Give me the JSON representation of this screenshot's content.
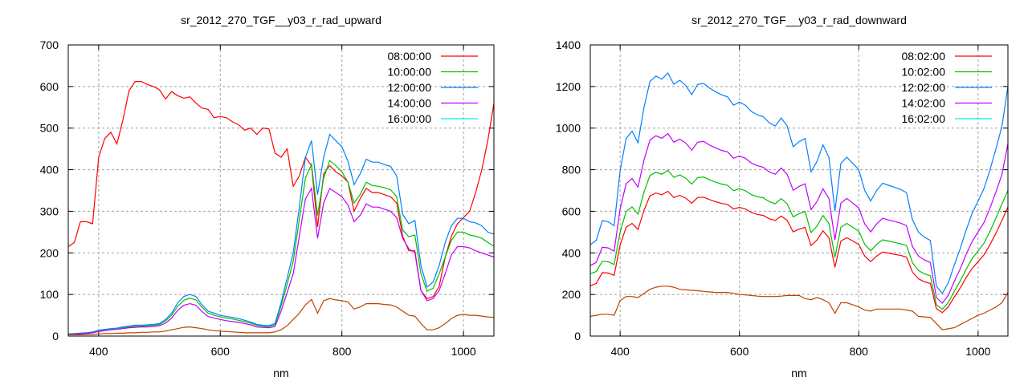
{
  "chart_data": [
    {
      "type": "line",
      "title": "sr_2012_270_TGF__y03_r_rad_upward",
      "xlabel": "nm",
      "ylabel": "",
      "xlim": [
        350,
        1050
      ],
      "ylim": [
        0,
        700
      ],
      "xticks": [
        400,
        600,
        800,
        1000
      ],
      "yticks": [
        0,
        100,
        200,
        300,
        400,
        500,
        600,
        700
      ],
      "grid": true,
      "legend_position": "top-right",
      "x_start": 350,
      "x_step": 10,
      "series": [
        {
          "name": "08:00:00",
          "color": "#ff0000",
          "legend_color": "#ff0000",
          "values": [
            215,
            225,
            275,
            275,
            270,
            430,
            475,
            490,
            462,
            520,
            590,
            612,
            612,
            605,
            600,
            592,
            570,
            588,
            578,
            572,
            575,
            560,
            548,
            545,
            525,
            528,
            525,
            515,
            508,
            495,
            500,
            485,
            500,
            498,
            440,
            430,
            450,
            360,
            385,
            430,
            410,
            262,
            390,
            410,
            395,
            385,
            370,
            300,
            330,
            355,
            345,
            345,
            340,
            335,
            320,
            240,
            205,
            205,
            110,
            90,
            95,
            120,
            190,
            240,
            270,
            285,
            300,
            345,
            400,
            470,
            560
          ]
        },
        {
          "name": "10:00:00",
          "color": "#00c000",
          "legend_color": "#00c000",
          "values": [
            4,
            5,
            6,
            7,
            9,
            13,
            15,
            17,
            18,
            20,
            22,
            24,
            24,
            25,
            26,
            28,
            36,
            50,
            72,
            86,
            91,
            87,
            69,
            55,
            50,
            46,
            43,
            41,
            38,
            35,
            31,
            26,
            24,
            23,
            27,
            72,
            125,
            180,
            280,
            380,
            413,
            290,
            380,
            422,
            410,
            395,
            370,
            320,
            340,
            370,
            362,
            360,
            357,
            352,
            335,
            255,
            239,
            243,
            150,
            108,
            115,
            150,
            190,
            230,
            250,
            250,
            243,
            240,
            235,
            225,
            216
          ]
        },
        {
          "name": "12:00:00",
          "color": "#0080ff",
          "legend_color": "#0080ff",
          "values": [
            5,
            6,
            7,
            8,
            10,
            14,
            16,
            18,
            19,
            22,
            24,
            26,
            26,
            27,
            28,
            30,
            40,
            55,
            80,
            95,
            100,
            95,
            75,
            60,
            55,
            50,
            47,
            45,
            42,
            38,
            34,
            28,
            26,
            25,
            30,
            80,
            140,
            200,
            310,
            430,
            470,
            340,
            430,
            485,
            470,
            455,
            420,
            364,
            390,
            425,
            418,
            418,
            412,
            408,
            385,
            293,
            270,
            278,
            170,
            118,
            130,
            170,
            225,
            265,
            283,
            283,
            275,
            272,
            265,
            250,
            245
          ]
        },
        {
          "name": "14:00:00",
          "color": "#c000ff",
          "legend_color": "#c000ff",
          "values": [
            3,
            4,
            5,
            6,
            8,
            11,
            13,
            15,
            16,
            18,
            20,
            21,
            22,
            22,
            23,
            25,
            31,
            43,
            62,
            74,
            78,
            74,
            59,
            47,
            43,
            40,
            37,
            35,
            33,
            30,
            27,
            22,
            21,
            20,
            23,
            60,
            105,
            150,
            240,
            330,
            355,
            235,
            320,
            355,
            345,
            335,
            315,
            275,
            290,
            318,
            310,
            310,
            305,
            300,
            285,
            235,
            210,
            200,
            110,
            85,
            90,
            110,
            150,
            195,
            215,
            215,
            212,
            205,
            200,
            195,
            190
          ]
        },
        {
          "name": "16:00:00",
          "color": "#c04000",
          "legend_color": "#00eeee",
          "values": [
            3,
            3,
            3,
            4,
            4,
            5,
            6,
            6,
            7,
            7,
            8,
            8,
            9,
            9,
            10,
            10,
            12,
            15,
            18,
            21,
            22,
            20,
            18,
            15,
            13,
            12,
            11,
            10,
            9,
            8,
            8,
            8,
            8,
            8,
            10,
            15,
            25,
            40,
            55,
            75,
            88,
            55,
            85,
            90,
            87,
            85,
            82,
            65,
            70,
            78,
            78,
            78,
            76,
            75,
            70,
            60,
            50,
            48,
            30,
            15,
            15,
            20,
            30,
            42,
            50,
            52,
            50,
            50,
            48,
            46,
            45
          ]
        }
      ]
    },
    {
      "type": "line",
      "title": "sr_2012_270_TGF__y03_r_rad_downward",
      "xlabel": "nm",
      "ylabel": "",
      "xlim": [
        350,
        1050
      ],
      "ylim": [
        0,
        1400
      ],
      "xticks": [
        400,
        600,
        800,
        1000
      ],
      "yticks": [
        0,
        200,
        400,
        600,
        800,
        1000,
        1200,
        1400
      ],
      "grid": true,
      "legend_position": "top-right",
      "x_start": 350,
      "x_step": 10,
      "series": [
        {
          "name": "08:02:00",
          "color": "#ff0000",
          "legend_color": "#ff0000",
          "values": [
            242,
            253,
            305,
            303,
            292,
            437,
            523,
            542,
            512,
            605,
            674,
            688,
            679,
            696,
            666,
            677,
            663,
            639,
            666,
            668,
            656,
            646,
            638,
            633,
            611,
            619,
            611,
            594,
            585,
            580,
            564,
            556,
            577,
            556,
            501,
            514,
            523,
            435,
            462,
            506,
            473,
            330,
            457,
            473,
            457,
            440,
            385,
            358,
            385,
            404,
            399,
            393,
            388,
            380,
            308,
            275,
            261,
            253,
            132,
            113,
            140,
            187,
            231,
            281,
            325,
            358,
            391,
            440,
            495,
            556,
            620
          ]
        },
        {
          "name": "10:02:00",
          "color": "#00c000",
          "legend_color": "#00c000",
          "values": [
            300,
            310,
            360,
            357,
            344,
            500,
            599,
            621,
            586,
            693,
            772,
            788,
            778,
            797,
            763,
            775,
            759,
            731,
            762,
            765,
            751,
            740,
            731,
            725,
            699,
            709,
            699,
            680,
            670,
            665,
            646,
            636,
            661,
            636,
            573,
            589,
            599,
            498,
            529,
            580,
            542,
            378,
            523,
            542,
            523,
            504,
            441,
            410,
            441,
            463,
            457,
            450,
            444,
            435,
            353,
            315,
            299,
            290,
            151,
            129,
            161,
            214,
            265,
            321,
            372,
            410,
            447,
            504,
            567,
            636,
            700
          ]
        },
        {
          "name": "12:02:00",
          "color": "#0080ff",
          "legend_color": "#0080ff",
          "values": [
            440,
            460,
            555,
            550,
            530,
            794,
            950,
            985,
            930,
            1100,
            1225,
            1250,
            1235,
            1265,
            1211,
            1230,
            1205,
            1161,
            1210,
            1215,
            1192,
            1175,
            1160,
            1150,
            1110,
            1125,
            1110,
            1080,
            1064,
            1055,
            1025,
            1010,
            1049,
            1010,
            910,
            935,
            950,
            790,
            840,
            920,
            860,
            600,
            830,
            860,
            830,
            800,
            700,
            650,
            700,
            735,
            725,
            715,
            705,
            690,
            560,
            500,
            475,
            460,
            240,
            205,
            255,
            340,
            420,
            510,
            590,
            650,
            710,
            800,
            900,
            1010,
            1200
          ]
        },
        {
          "name": "14:02:00",
          "color": "#c000ff",
          "legend_color": "#c000ff",
          "values": [
            339,
            354,
            427,
            424,
            408,
            611,
            732,
            758,
            716,
            847,
            943,
            963,
            951,
            974,
            932,
            947,
            928,
            894,
            932,
            936,
            918,
            905,
            893,
            886,
            855,
            866,
            855,
            832,
            819,
            812,
            789,
            778,
            808,
            778,
            701,
            720,
            732,
            608,
            647,
            708,
            662,
            462,
            639,
            662,
            639,
            616,
            539,
            501,
            539,
            566,
            558,
            551,
            543,
            531,
            431,
            385,
            366,
            354,
            185,
            158,
            196,
            262,
            323,
            393,
            454,
            501,
            547,
            616,
            693,
            778,
            924
          ]
        },
        {
          "name": "16:02:00",
          "color": "#c04000",
          "legend_color": "#00eeee",
          "values": [
            95,
            100,
            105,
            105,
            100,
            170,
            190,
            190,
            185,
            205,
            225,
            235,
            240,
            240,
            235,
            225,
            222,
            220,
            218,
            215,
            212,
            210,
            210,
            210,
            205,
            200,
            198,
            195,
            192,
            190,
            190,
            190,
            192,
            195,
            195,
            195,
            180,
            175,
            185,
            175,
            160,
            110,
            160,
            160,
            150,
            140,
            125,
            120,
            130,
            130,
            130,
            130,
            130,
            125,
            120,
            95,
            92,
            90,
            60,
            30,
            35,
            40,
            55,
            70,
            85,
            100,
            110,
            125,
            140,
            160,
            210
          ]
        }
      ]
    }
  ]
}
